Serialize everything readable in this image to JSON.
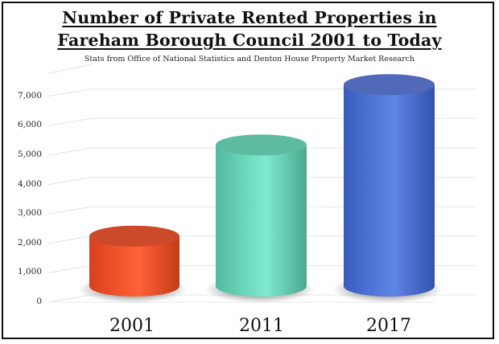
{
  "chart_data": {
    "type": "bar",
    "style": "3d-cylinder",
    "title": "Number of Private Rented Properties in Fareham Borough Council 2001 to Today",
    "title_lines": [
      "Number of Private Rented Properties in",
      "Fareham Borough Council 2001 to Today"
    ],
    "subtitle": "Stats from Office of National Statistics and Denton House Property Market Research",
    "xlabel": "",
    "ylabel": "",
    "categories": [
      "2001",
      "2011",
      "2017"
    ],
    "values": [
      2000,
      5100,
      7150
    ],
    "colors": [
      "#f0522a",
      "#6fdcc0",
      "#4a6fd0"
    ],
    "ylim": [
      0,
      7000
    ],
    "yticks": [
      "0",
      "1,000",
      "2,000",
      "3,000",
      "4,000",
      "5,000",
      "6,000",
      "7,000"
    ],
    "grid": true,
    "legend": "none"
  }
}
